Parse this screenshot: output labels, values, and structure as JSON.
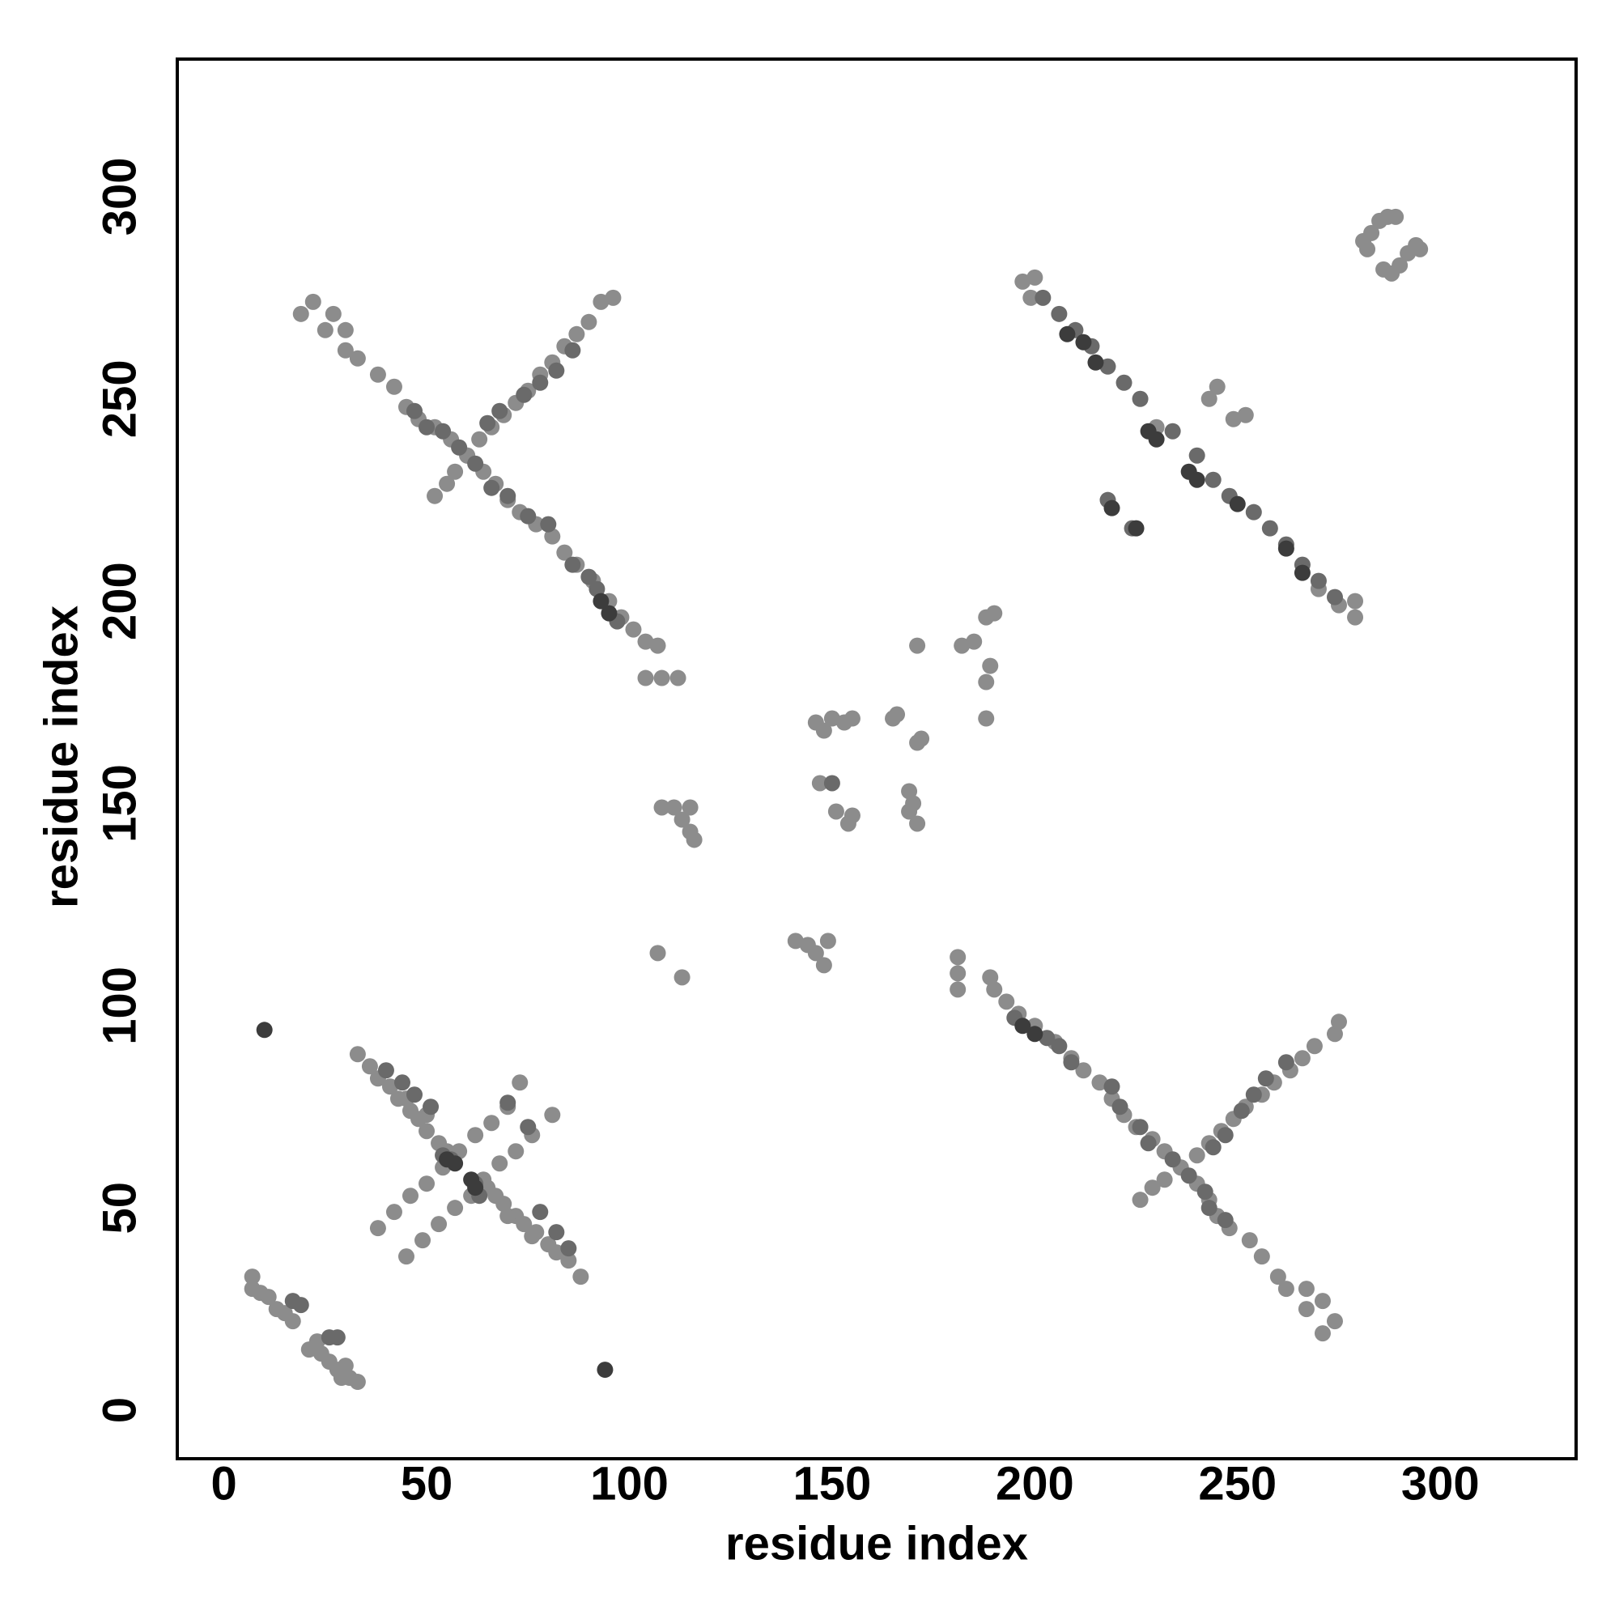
{
  "chart_data": {
    "type": "scatter",
    "xlabel": "residue index",
    "ylabel": "residue index",
    "xlim": [
      -11.5,
      333.5
    ],
    "ylim": [
      -12,
      334
    ],
    "xticks": [
      0,
      50,
      100,
      150,
      200,
      250,
      300
    ],
    "yticks": [
      0,
      50,
      100,
      150,
      200,
      250,
      300
    ],
    "series": [
      {
        "color": "#8c8c8c",
        "x": [
          7,
          7,
          9,
          11,
          13,
          15,
          17,
          21,
          24,
          26,
          28,
          29,
          31,
          33,
          30,
          23,
          33,
          36,
          38,
          41,
          43,
          46,
          48,
          50,
          53,
          55,
          65,
          67,
          69,
          72,
          74,
          77,
          80,
          82,
          85,
          88,
          45,
          50,
          70,
          76,
          38,
          42,
          46,
          50,
          54,
          58,
          62,
          66,
          70,
          73,
          45,
          49,
          53,
          57,
          61,
          64,
          68,
          72,
          76,
          81,
          19,
          22,
          25,
          27,
          30,
          30,
          33,
          38,
          42,
          45,
          48,
          52,
          56,
          60,
          64,
          67,
          70,
          73,
          77,
          81,
          84,
          87,
          91,
          95,
          98,
          101,
          104,
          107,
          104,
          108,
          112,
          52,
          55,
          57,
          60,
          63,
          66,
          69,
          72,
          75,
          78,
          81,
          84,
          87,
          90,
          93,
          96,
          271,
          274,
          267,
          271,
          267,
          262,
          260,
          256,
          253,
          248,
          245,
          243,
          240,
          236,
          232,
          229,
          225,
          222,
          219,
          216,
          212,
          209,
          205,
          200,
          196,
          193,
          190,
          189,
          181,
          181,
          181,
          226,
          229,
          232,
          236,
          240,
          243,
          246,
          249,
          252,
          256,
          259,
          263,
          266,
          269,
          274,
          275,
          197,
          200,
          199,
          230,
          243,
          245,
          249,
          252,
          279,
          279,
          275,
          270,
          281,
          283,
          285,
          287,
          289,
          282,
          286,
          288,
          290,
          292,
          294,
          295,
          107,
          113,
          108,
          111,
          113,
          115,
          116,
          115,
          141,
          144,
          146,
          148,
          149,
          147,
          151,
          155,
          154,
          146,
          148,
          150,
          153,
          155,
          165,
          166,
          171,
          172,
          169,
          169,
          171,
          170,
          171,
          182,
          185,
          188,
          190,
          189,
          188,
          188
        ],
        "y": [
          33,
          30,
          29,
          28,
          25,
          24,
          22,
          15,
          14,
          12,
          10,
          8,
          8,
          7,
          11,
          17,
          88,
          85,
          82,
          80,
          77,
          74,
          72,
          69,
          66,
          64,
          55,
          53,
          51,
          48,
          46,
          44,
          41,
          39,
          37,
          33,
          77,
          73,
          48,
          43,
          45,
          49,
          53,
          56,
          60,
          64,
          68,
          71,
          75,
          81,
          38,
          42,
          46,
          50,
          53,
          57,
          61,
          64,
          68,
          73,
          271,
          274,
          267,
          271,
          267,
          262,
          260,
          256,
          253,
          248,
          245,
          243,
          240,
          236,
          232,
          229,
          225,
          222,
          219,
          216,
          212,
          209,
          205,
          200,
          196,
          193,
          190,
          189,
          181,
          181,
          181,
          226,
          229,
          232,
          236,
          240,
          243,
          246,
          249,
          252,
          256,
          259,
          263,
          266,
          269,
          274,
          275,
          19,
          22,
          25,
          27,
          30,
          30,
          33,
          38,
          42,
          45,
          48,
          52,
          56,
          60,
          64,
          67,
          70,
          73,
          77,
          81,
          84,
          87,
          91,
          95,
          98,
          101,
          104,
          107,
          104,
          108,
          112,
          52,
          55,
          57,
          60,
          63,
          66,
          69,
          72,
          75,
          78,
          81,
          84,
          87,
          90,
          93,
          96,
          279,
          280,
          275,
          243,
          250,
          253,
          245,
          246,
          200,
          196,
          199,
          203,
          289,
          291,
          294,
          295,
          295,
          287,
          282,
          281,
          283,
          286,
          288,
          287,
          113,
          107,
          149,
          149,
          146,
          143,
          141,
          149,
          116,
          115,
          113,
          110,
          116,
          155,
          148,
          147,
          145,
          170,
          168,
          171,
          170,
          171,
          171,
          172,
          165,
          166,
          153,
          148,
          145,
          150,
          189,
          189,
          190,
          196,
          197,
          184,
          180,
          171
        ]
      },
      {
        "color": "#6a6a6a",
        "x": [
          17,
          19,
          28,
          26,
          44,
          47,
          51,
          54,
          56,
          62,
          63,
          70,
          75,
          78,
          82,
          85,
          40,
          47,
          50,
          54,
          58,
          62,
          66,
          70,
          75,
          80,
          86,
          90,
          92,
          97,
          74,
          78,
          82,
          86,
          65,
          68,
          247,
          243,
          242,
          238,
          234,
          228,
          226,
          221,
          219,
          209,
          206,
          203,
          195,
          251,
          254,
          257,
          262,
          244,
          247,
          202,
          206,
          210,
          214,
          218,
          222,
          226,
          234,
          240,
          244,
          248,
          254,
          258,
          262,
          266,
          270,
          274,
          218,
          224,
          150
        ],
        "y": [
          27,
          26,
          18,
          18,
          81,
          78,
          75,
          63,
          62,
          56,
          53,
          76,
          70,
          49,
          44,
          40,
          84,
          247,
          243,
          242,
          238,
          234,
          228,
          226,
          221,
          219,
          209,
          206,
          203,
          195,
          251,
          254,
          257,
          262,
          244,
          247,
          47,
          50,
          54,
          58,
          62,
          66,
          70,
          75,
          80,
          86,
          90,
          92,
          97,
          74,
          78,
          82,
          86,
          65,
          68,
          275,
          271,
          267,
          263,
          258,
          254,
          250,
          242,
          236,
          230,
          226,
          222,
          218,
          214,
          209,
          205,
          201,
          225,
          218,
          155
        ]
      },
      {
        "color": "#3c3c3c",
        "x": [
          10,
          94,
          55,
          57,
          61,
          62,
          93,
          95,
          200,
          197,
          208,
          212,
          215,
          228,
          230,
          238,
          240,
          250,
          262,
          266,
          219,
          225
        ],
        "y": [
          94,
          10,
          62,
          61,
          57,
          55,
          200,
          197,
          93,
          95,
          266,
          264,
          259,
          242,
          240,
          232,
          230,
          224,
          213,
          207,
          223,
          218
        ]
      }
    ]
  }
}
